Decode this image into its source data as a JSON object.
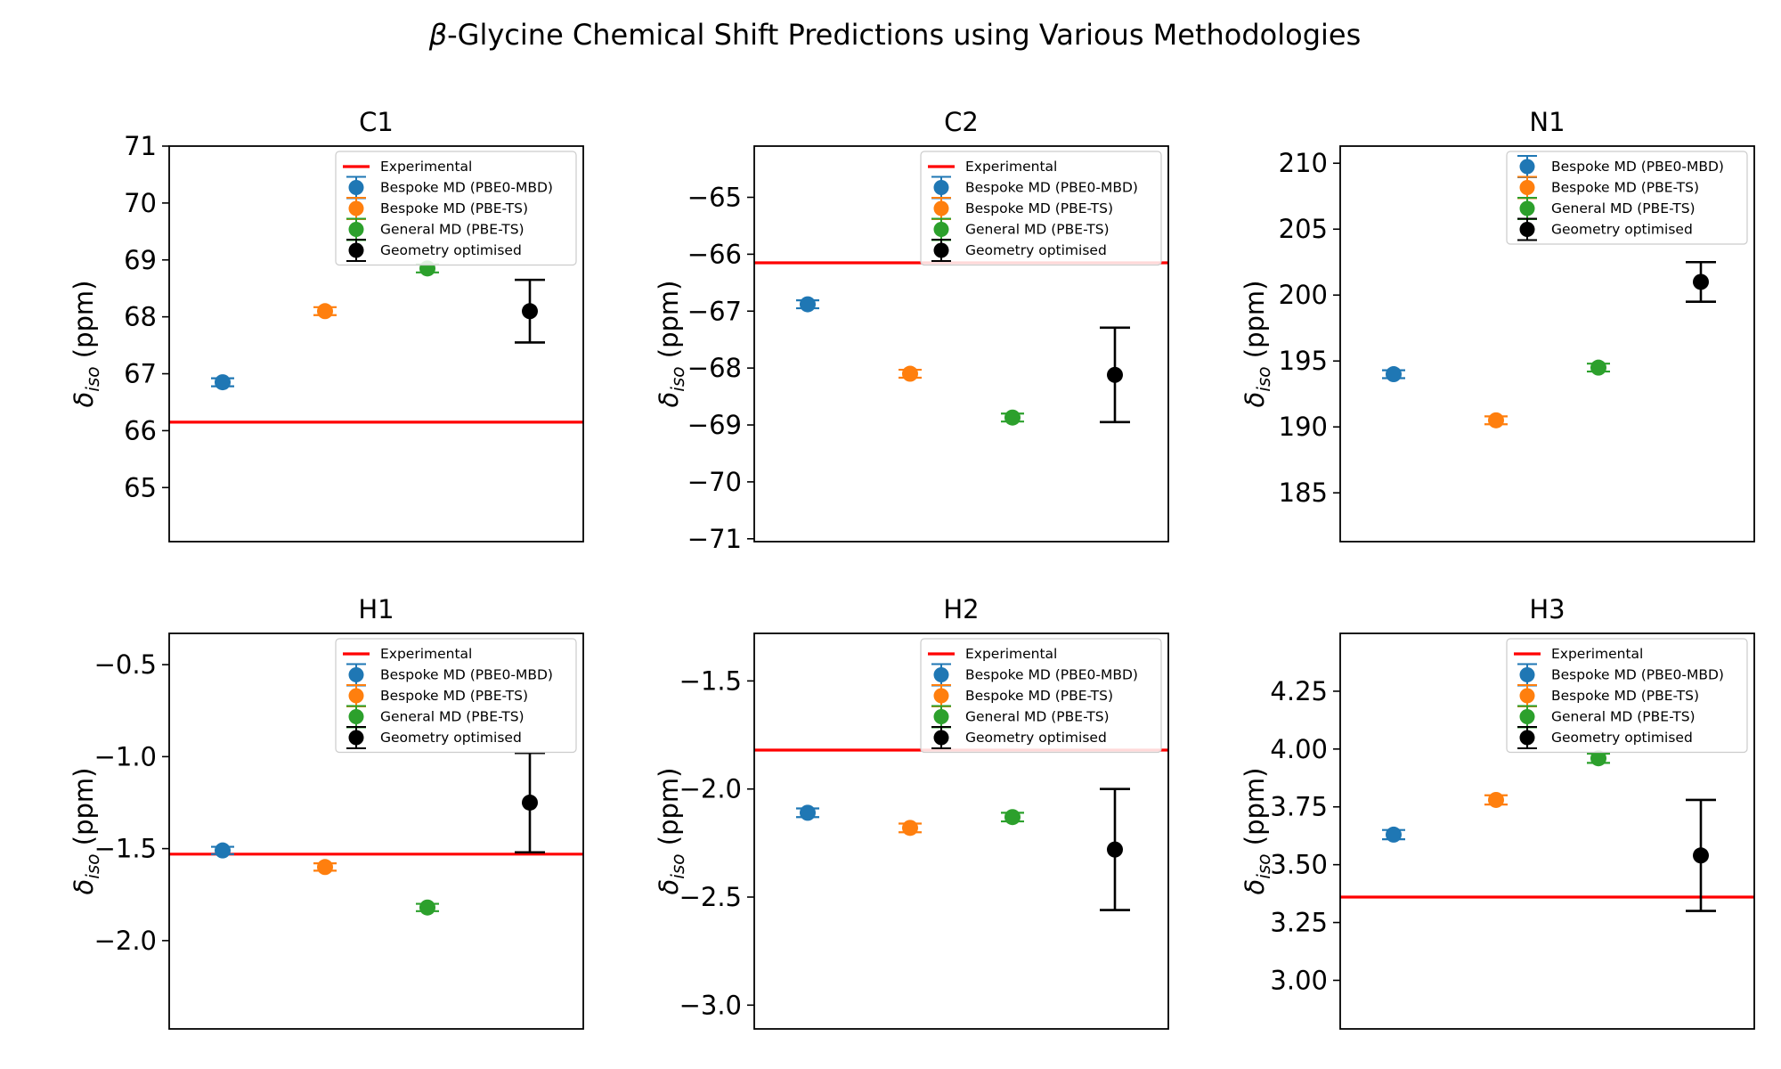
{
  "figure": {
    "title_prefix": "β",
    "title": "-Glycine Chemical Shift Predictions using Various Methodologies"
  },
  "ylabel": {
    "symbol": "δ",
    "subscript": "iso",
    "unit": " (ppm)"
  },
  "legend_labels": {
    "experimental": "Experimental",
    "pbe0_mbd": "Bespoke MD (PBE0-MBD)",
    "pbe_ts": "Bespoke MD (PBE-TS)",
    "general": "General MD (PBE-TS)",
    "geom": "Geometry optimised"
  },
  "colors": {
    "experimental": "#ff0000",
    "pbe0_mbd": "#1f77b4",
    "pbe_ts": "#ff7f0e",
    "general": "#2ca02c",
    "geom": "#000000"
  },
  "chart_data": [
    {
      "type": "scatter",
      "title": "C1",
      "ylim": [
        64.05,
        71.0
      ],
      "yticks": [
        65,
        66,
        67,
        68,
        69,
        70,
        71
      ],
      "tick_labels": [
        "65",
        "66",
        "67",
        "68",
        "69",
        "70",
        "71"
      ],
      "experimental": 66.15,
      "show_experimental_legend": true,
      "points": [
        {
          "series": "Bespoke MD (PBE0-MBD)",
          "x": 1,
          "y": 66.85,
          "err": 0.07
        },
        {
          "series": "Bespoke MD (PBE-TS)",
          "x": 2,
          "y": 68.1,
          "err": 0.07
        },
        {
          "series": "General MD (PBE-TS)",
          "x": 3,
          "y": 68.85,
          "err": 0.07
        },
        {
          "series": "Geometry optimised",
          "x": 4,
          "y": 68.1,
          "err": 0.55
        }
      ]
    },
    {
      "type": "scatter",
      "title": "C2",
      "ylim": [
        -71.05,
        -64.1
      ],
      "yticks": [
        -71,
        -70,
        -69,
        -68,
        -67,
        -66,
        -65
      ],
      "tick_labels": [
        "−71",
        "−70",
        "−69",
        "−68",
        "−67",
        "−66",
        "−65"
      ],
      "experimental": -66.15,
      "show_experimental_legend": true,
      "points": [
        {
          "series": "Bespoke MD (PBE0-MBD)",
          "x": 1,
          "y": -66.88,
          "err": 0.07
        },
        {
          "series": "Bespoke MD (PBE-TS)",
          "x": 2,
          "y": -68.1,
          "err": 0.07
        },
        {
          "series": "General MD (PBE-TS)",
          "x": 3,
          "y": -68.87,
          "err": 0.07
        },
        {
          "series": "Geometry optimised",
          "x": 4,
          "y": -68.12,
          "err": 0.83
        }
      ]
    },
    {
      "type": "scatter",
      "title": "N1",
      "ylim": [
        181.3,
        211.3
      ],
      "yticks": [
        185,
        190,
        195,
        200,
        205,
        210
      ],
      "tick_labels": [
        "185",
        "190",
        "195",
        "200",
        "205",
        "210"
      ],
      "experimental": null,
      "show_experimental_legend": false,
      "points": [
        {
          "series": "Bespoke MD (PBE0-MBD)",
          "x": 1,
          "y": 194.0,
          "err": 0.3
        },
        {
          "series": "Bespoke MD (PBE-TS)",
          "x": 2,
          "y": 190.5,
          "err": 0.3
        },
        {
          "series": "General MD (PBE-TS)",
          "x": 3,
          "y": 194.5,
          "err": 0.3
        },
        {
          "series": "Geometry optimised",
          "x": 4,
          "y": 201.0,
          "err": 1.5
        }
      ]
    },
    {
      "type": "scatter",
      "title": "H1",
      "ylim": [
        -2.48,
        -0.33
      ],
      "yticks": [
        -2.0,
        -1.5,
        -1.0,
        -0.5
      ],
      "tick_labels": [
        "−2.0",
        "−1.5",
        "−1.0",
        "−0.5"
      ],
      "experimental": -1.53,
      "show_experimental_legend": true,
      "points": [
        {
          "series": "Bespoke MD (PBE0-MBD)",
          "x": 1,
          "y": -1.51,
          "err": 0.02
        },
        {
          "series": "Bespoke MD (PBE-TS)",
          "x": 2,
          "y": -1.6,
          "err": 0.02
        },
        {
          "series": "General MD (PBE-TS)",
          "x": 3,
          "y": -1.82,
          "err": 0.02
        },
        {
          "series": "Geometry optimised",
          "x": 4,
          "y": -1.25,
          "err": 0.27
        }
      ]
    },
    {
      "type": "scatter",
      "title": "H2",
      "ylim": [
        -3.11,
        -1.28
      ],
      "yticks": [
        -3.0,
        -2.5,
        -2.0,
        -1.5
      ],
      "tick_labels": [
        "−3.0",
        "−2.5",
        "−2.0",
        "−1.5"
      ],
      "experimental": -1.82,
      "show_experimental_legend": true,
      "points": [
        {
          "series": "Bespoke MD (PBE0-MBD)",
          "x": 1,
          "y": -2.11,
          "err": 0.02
        },
        {
          "series": "Bespoke MD (PBE-TS)",
          "x": 2,
          "y": -2.18,
          "err": 0.02
        },
        {
          "series": "General MD (PBE-TS)",
          "x": 3,
          "y": -2.13,
          "err": 0.02
        },
        {
          "series": "Geometry optimised",
          "x": 4,
          "y": -2.28,
          "err": 0.28
        }
      ]
    },
    {
      "type": "scatter",
      "title": "H3",
      "ylim": [
        2.79,
        4.5
      ],
      "yticks": [
        3.0,
        3.25,
        3.5,
        3.75,
        4.0,
        4.25
      ],
      "tick_labels": [
        "3.00",
        "3.25",
        "3.50",
        "3.75",
        "4.00",
        "4.25"
      ],
      "experimental": 3.36,
      "show_experimental_legend": true,
      "points": [
        {
          "series": "Bespoke MD (PBE0-MBD)",
          "x": 1,
          "y": 3.63,
          "err": 0.02
        },
        {
          "series": "Bespoke MD (PBE-TS)",
          "x": 2,
          "y": 3.78,
          "err": 0.02
        },
        {
          "series": "General MD (PBE-TS)",
          "x": 3,
          "y": 3.96,
          "err": 0.02
        },
        {
          "series": "Geometry optimised",
          "x": 4,
          "y": 3.54,
          "err": 0.24
        }
      ]
    }
  ]
}
